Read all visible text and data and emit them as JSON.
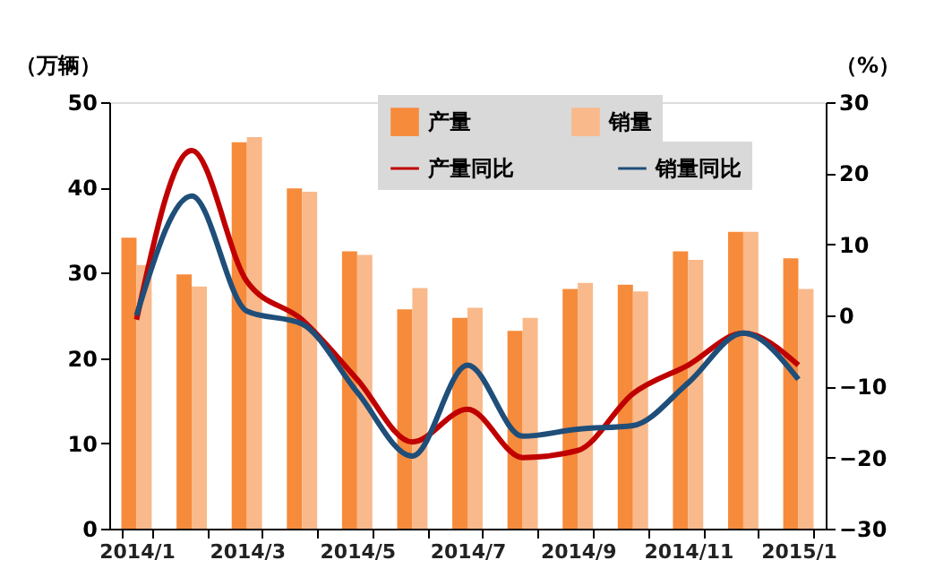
{
  "chart_data": {
    "type": "bar",
    "ylabel": "（万辆）",
    "y2label": "（%）",
    "categories": [
      "2014/1",
      null,
      "2014/3",
      null,
      "2014/5",
      null,
      "2014/7",
      null,
      "2014/9",
      null,
      "2014/11",
      null,
      "2015/1"
    ],
    "series": [
      {
        "name": "产量",
        "color": "#f68b3c",
        "values": [
          34.1,
          29.8,
          45.3,
          39.9,
          32.5,
          25.7,
          24.7,
          23.2,
          28.1,
          28.6,
          32.5,
          34.8,
          31.7
        ]
      },
      {
        "name": "销量",
        "color": "#f9b98a",
        "values": [
          30.9,
          28.4,
          45.9,
          39.5,
          32.1,
          28.2,
          25.9,
          24.7,
          28.8,
          27.8,
          31.5,
          34.8,
          28.1
        ]
      },
      {
        "name": "产量同比",
        "type": "line",
        "axis": "y2",
        "color": "#c00000",
        "values": [
          -0.6,
          23.2,
          4.8,
          -0.6,
          -9,
          -17.8,
          -13.2,
          -20,
          -19,
          -11,
          -7,
          -2.5,
          -7
        ]
      },
      {
        "name": "销量同比",
        "type": "line",
        "axis": "y2",
        "color": "#1f4e79",
        "values": [
          0,
          16.8,
          0.6,
          -1.2,
          -10.8,
          -19.8,
          -7,
          -17,
          -16,
          -15.5,
          -9.5,
          -2.5,
          -9
        ]
      }
    ],
    "ylim": [
      0,
      50
    ],
    "yticks": [
      0,
      10,
      20,
      30,
      40,
      50
    ],
    "y2lim": [
      -30,
      30
    ],
    "y2ticks": [
      -30,
      -20,
      -10,
      0,
      10,
      20,
      30
    ],
    "grid": false,
    "legend": "top",
    "line_style": "solid"
  }
}
